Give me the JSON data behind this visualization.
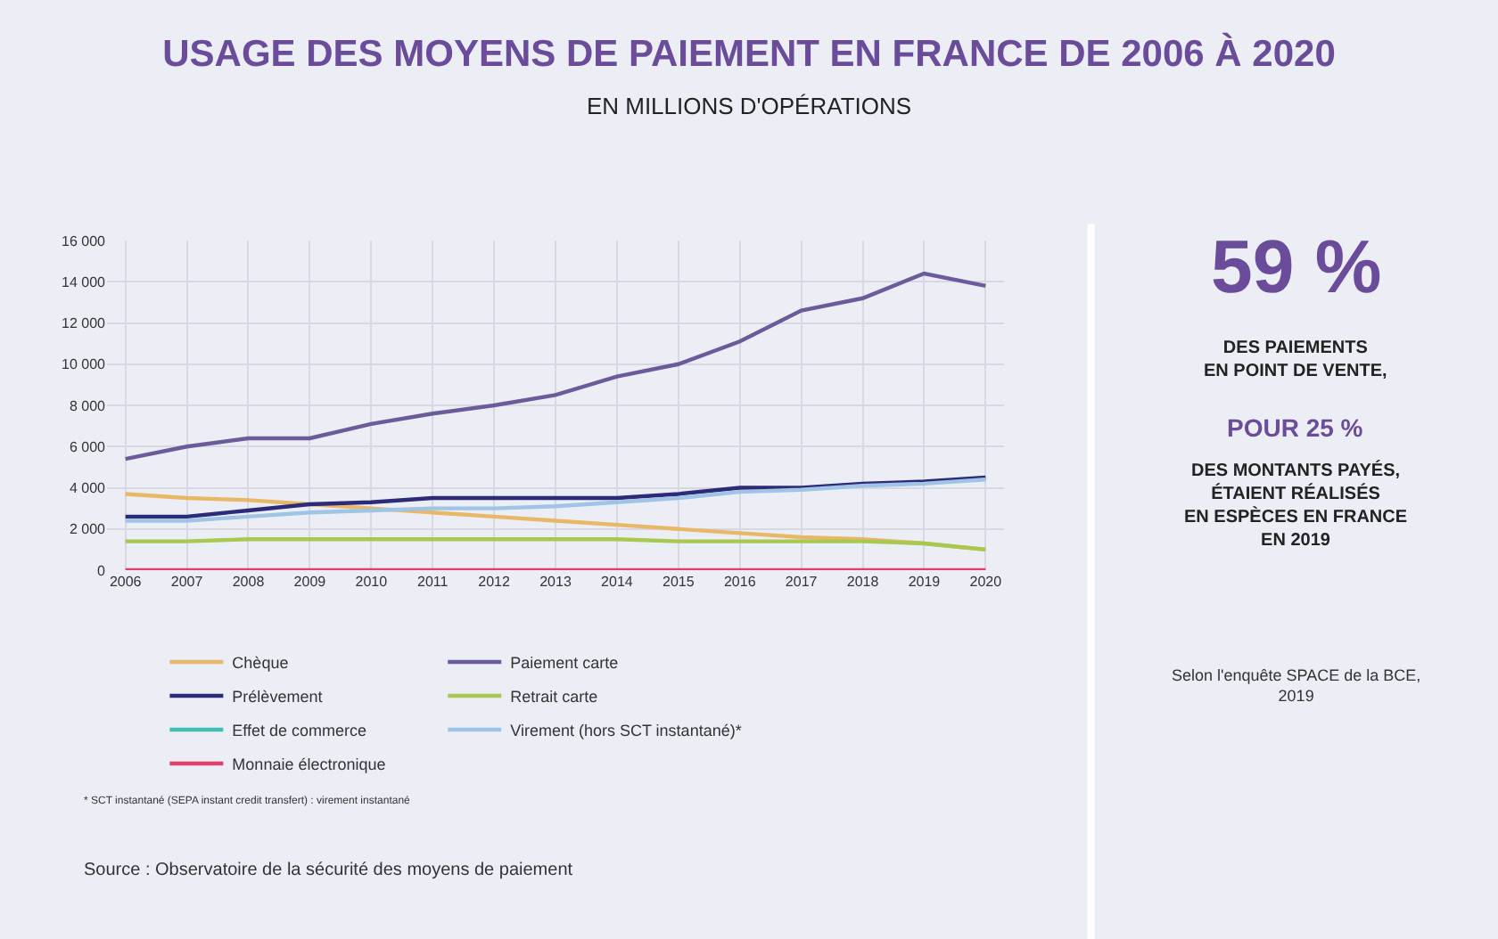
{
  "chart_data": {
    "type": "line",
    "title": "USAGE DES MOYENS DE PAIEMENT EN FRANCE DE 2006 À 2020",
    "subtitle": "EN MILLIONS D'OPÉRATIONS",
    "categories": [
      "2006",
      "2007",
      "2008",
      "2009",
      "2010",
      "2011",
      "2012",
      "2013",
      "2014",
      "2015",
      "2016",
      "2017",
      "2018",
      "2019",
      "2020"
    ],
    "series": [
      {
        "name": "Chèque",
        "color": "#e8b868",
        "values": [
          3700,
          3500,
          3400,
          3200,
          3000,
          2800,
          2600,
          2400,
          2200,
          2000,
          1800,
          1600,
          1500,
          1300,
          1000
        ]
      },
      {
        "name": "Paiement carte",
        "color": "#6b5b9a",
        "values": [
          5400,
          6000,
          6400,
          6400,
          7100,
          7600,
          8000,
          8500,
          9400,
          10000,
          11100,
          12600,
          13200,
          14400,
          13800
        ]
      },
      {
        "name": "Prélèvement",
        "color": "#2e2a7a",
        "values": [
          2600,
          2600,
          2900,
          3200,
          3300,
          3500,
          3500,
          3500,
          3500,
          3700,
          4000,
          4000,
          4200,
          4300,
          4500
        ]
      },
      {
        "name": "Retrait carte",
        "color": "#a8c850",
        "values": [
          1400,
          1400,
          1500,
          1500,
          1500,
          1500,
          1500,
          1500,
          1500,
          1400,
          1400,
          1400,
          1400,
          1300,
          1000
        ]
      },
      {
        "name": "Effet de commerce",
        "color": "#40c0b0",
        "values": [
          null,
          null,
          null,
          null,
          null,
          null,
          null,
          null,
          null,
          null,
          null,
          null,
          null,
          null,
          null
        ]
      },
      {
        "name": "Virement (hors SCT instantané)*",
        "color": "#9fc4e6",
        "values": [
          2400,
          2400,
          2600,
          2800,
          2900,
          3000,
          3000,
          3100,
          3300,
          3500,
          3800,
          3900,
          4100,
          4200,
          4400
        ]
      },
      {
        "name": "Monnaie électronique",
        "color": "#e0406a",
        "values": [
          0,
          0,
          0,
          0,
          0,
          0,
          0,
          0,
          0,
          0,
          0,
          0,
          0,
          0,
          0
        ]
      }
    ],
    "ylim": [
      0,
      16000
    ],
    "yticks": [
      0,
      {
        "value": 2000,
        "label": "2 000"
      },
      {
        "value": 4000,
        "label": "4 000"
      },
      {
        "value": 6000,
        "label": "6 000"
      },
      {
        "value": 8000,
        "label": "8 000"
      },
      {
        "value": 10000,
        "label": "10 000"
      },
      {
        "value": 12000,
        "label": "12 000"
      },
      {
        "value": 14000,
        "label": "14 000"
      },
      {
        "value": 16000,
        "label": "16 000"
      }
    ],
    "grid": true,
    "legend": "bottom",
    "marker": "none",
    "line_style": "solid",
    "annotations": [
      "59 %",
      "DES PAIEMENTS\nEN POINT DE VENTE,",
      "POUR 25 %",
      "DES MONTANTS PAYÉS,\nÉTAIENT RÉALISÉS\nEN ESPÈCES EN FRANCE\nEN 2019",
      "Selon l'enquête SPACE de la BCE,\n2019",
      "* SCT instantané (SEPA instant credit transfert) : virement instantané",
      "Source : Observatoire de la sécurité des moyens de paiement"
    ]
  }
}
